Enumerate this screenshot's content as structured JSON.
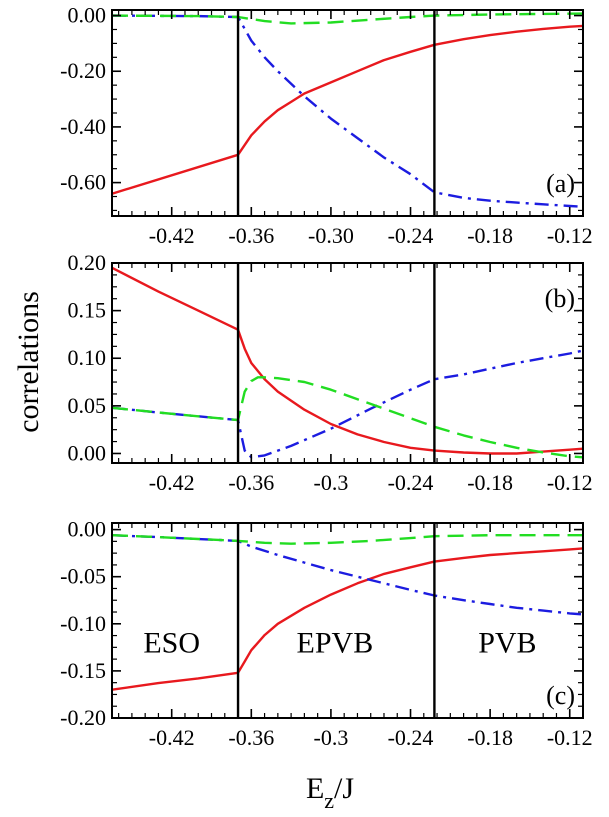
{
  "ylabel": "correlations",
  "xlabel_main": "E",
  "xlabel_sub": "z",
  "xlabel_tail": "/J",
  "chart_data": [
    {
      "type": "line",
      "panel": "(a)",
      "xlim": [
        -0.465,
        -0.11
      ],
      "ylim": [
        -0.72,
        0.02
      ],
      "yticks": [
        0.0,
        -0.2,
        -0.4,
        -0.6
      ],
      "ytick_labels": [
        "0.00",
        "-0.20",
        "-0.40",
        "-0.60"
      ],
      "xticks": [
        -0.42,
        -0.36,
        -0.3,
        -0.24,
        -0.18,
        -0.12
      ],
      "xtick_labels": [
        "-0.42",
        "-0.36",
        "-0.30",
        "-0.24",
        "-0.18",
        "-0.12"
      ],
      "vlines": [
        -0.37,
        -0.222
      ],
      "region_labels": [],
      "series": [
        {
          "color": "#e8191e",
          "dash": "solid",
          "x": [
            -0.465,
            -0.37,
            -0.37,
            -0.36,
            -0.35,
            -0.34,
            -0.33,
            -0.32,
            -0.3,
            -0.28,
            -0.26,
            -0.24,
            -0.222,
            -0.2,
            -0.18,
            -0.16,
            -0.14,
            -0.12,
            -0.11
          ],
          "y": [
            -0.64,
            -0.5,
            -0.5,
            -0.43,
            -0.38,
            -0.34,
            -0.31,
            -0.28,
            -0.24,
            -0.2,
            -0.16,
            -0.13,
            -0.105,
            -0.085,
            -0.07,
            -0.058,
            -0.048,
            -0.04,
            -0.037
          ]
        },
        {
          "color": "#1c1ce0",
          "dash": "dashdot",
          "x": [
            -0.465,
            -0.4,
            -0.37,
            -0.36,
            -0.35,
            -0.34,
            -0.32,
            -0.3,
            -0.28,
            -0.26,
            -0.24,
            -0.222,
            -0.2,
            -0.18,
            -0.16,
            -0.14,
            -0.12,
            -0.11
          ],
          "y": [
            0.0,
            -0.002,
            -0.005,
            -0.09,
            -0.15,
            -0.2,
            -0.29,
            -0.37,
            -0.44,
            -0.51,
            -0.57,
            -0.635,
            -0.655,
            -0.665,
            -0.672,
            -0.678,
            -0.684,
            -0.687
          ]
        },
        {
          "color": "#22dd22",
          "dash": "dashed",
          "x": [
            -0.465,
            -0.4,
            -0.37,
            -0.35,
            -0.33,
            -0.3,
            -0.27,
            -0.24,
            -0.222,
            -0.18,
            -0.14,
            -0.11
          ],
          "y": [
            0.0,
            -0.002,
            -0.005,
            -0.02,
            -0.028,
            -0.025,
            -0.015,
            -0.005,
            0.0,
            0.004,
            0.006,
            0.007
          ]
        }
      ]
    },
    {
      "type": "line",
      "panel": "(b)",
      "xlim": [
        -0.465,
        -0.11
      ],
      "ylim": [
        -0.01,
        0.2
      ],
      "yticks": [
        0.0,
        0.05,
        0.1,
        0.15,
        0.2
      ],
      "ytick_labels": [
        "0.00",
        "0.05",
        "0.10",
        "0.15",
        "0.20"
      ],
      "xticks": [
        -0.42,
        -0.36,
        -0.3,
        -0.24,
        -0.18,
        -0.12
      ],
      "xtick_labels": [
        "-0.42",
        "-0.36",
        "-0.3",
        "-0.24",
        "-0.18",
        "-0.12"
      ],
      "vlines": [
        -0.37,
        -0.222
      ],
      "region_labels": [],
      "series": [
        {
          "color": "#e8191e",
          "dash": "solid",
          "x": [
            -0.465,
            -0.43,
            -0.4,
            -0.37,
            -0.37,
            -0.365,
            -0.36,
            -0.35,
            -0.34,
            -0.32,
            -0.3,
            -0.28,
            -0.26,
            -0.24,
            -0.222,
            -0.2,
            -0.18,
            -0.16,
            -0.14,
            -0.12,
            -0.11
          ],
          "y": [
            0.195,
            0.17,
            0.15,
            0.13,
            0.13,
            0.11,
            0.095,
            0.078,
            0.065,
            0.046,
            0.031,
            0.02,
            0.012,
            0.006,
            0.003,
            0.001,
            0.0,
            0.0,
            0.002,
            0.004,
            0.005
          ]
        },
        {
          "color": "#1c1ce0",
          "dash": "dashdot",
          "x": [
            -0.465,
            -0.43,
            -0.4,
            -0.37,
            -0.37,
            -0.365,
            -0.36,
            -0.35,
            -0.33,
            -0.3,
            -0.27,
            -0.24,
            -0.222,
            -0.2,
            -0.18,
            -0.16,
            -0.14,
            -0.12,
            -0.11
          ],
          "y": [
            0.048,
            0.043,
            0.039,
            0.035,
            0.035,
            0.003,
            -0.004,
            -0.002,
            0.008,
            0.026,
            0.047,
            0.067,
            0.078,
            0.083,
            0.089,
            0.095,
            0.1,
            0.105,
            0.108
          ]
        },
        {
          "color": "#22dd22",
          "dash": "dashed",
          "x": [
            -0.465,
            -0.43,
            -0.4,
            -0.37,
            -0.37,
            -0.365,
            -0.36,
            -0.355,
            -0.35,
            -0.34,
            -0.32,
            -0.3,
            -0.28,
            -0.26,
            -0.24,
            -0.222,
            -0.2,
            -0.18,
            -0.16,
            -0.14,
            -0.12,
            -0.11
          ],
          "y": [
            0.048,
            0.043,
            0.039,
            0.035,
            0.035,
            0.065,
            0.076,
            0.08,
            0.08,
            0.079,
            0.075,
            0.067,
            0.057,
            0.047,
            0.037,
            0.028,
            0.019,
            0.012,
            0.006,
            0.001,
            -0.003,
            -0.004
          ]
        }
      ]
    },
    {
      "type": "line",
      "panel": "(c)",
      "xlim": [
        -0.465,
        -0.11
      ],
      "ylim": [
        -0.2,
        0.007
      ],
      "yticks": [
        0.0,
        -0.05,
        -0.1,
        -0.15,
        -0.2
      ],
      "ytick_labels": [
        "0.00",
        "-0.05",
        "-0.10",
        "-0.15",
        "-0.20"
      ],
      "xticks": [
        -0.42,
        -0.36,
        -0.3,
        -0.24,
        -0.18,
        -0.12
      ],
      "xtick_labels": [
        "-0.42",
        "-0.36",
        "-0.3",
        "-0.24",
        "-0.18",
        "-0.12"
      ],
      "vlines": [
        -0.37,
        -0.222
      ],
      "region_labels": [
        {
          "text": "ESO",
          "x": -0.42,
          "y": -0.12
        },
        {
          "text": "EPVB",
          "x": -0.297,
          "y": -0.12
        },
        {
          "text": "PVB",
          "x": -0.167,
          "y": -0.12
        }
      ],
      "series": [
        {
          "color": "#e8191e",
          "dash": "solid",
          "x": [
            -0.465,
            -0.43,
            -0.4,
            -0.37,
            -0.37,
            -0.365,
            -0.36,
            -0.35,
            -0.34,
            -0.32,
            -0.3,
            -0.28,
            -0.26,
            -0.24,
            -0.222,
            -0.2,
            -0.18,
            -0.16,
            -0.14,
            -0.12,
            -0.11
          ],
          "y": [
            -0.17,
            -0.163,
            -0.158,
            -0.152,
            -0.152,
            -0.14,
            -0.128,
            -0.112,
            -0.1,
            -0.083,
            -0.069,
            -0.057,
            -0.047,
            -0.04,
            -0.034,
            -0.03,
            -0.027,
            -0.025,
            -0.023,
            -0.021,
            -0.02
          ]
        },
        {
          "color": "#1c1ce0",
          "dash": "dashdot",
          "x": [
            -0.465,
            -0.43,
            -0.4,
            -0.37,
            -0.36,
            -0.34,
            -0.32,
            -0.3,
            -0.28,
            -0.26,
            -0.24,
            -0.222,
            -0.2,
            -0.18,
            -0.16,
            -0.14,
            -0.12,
            -0.11
          ],
          "y": [
            -0.006,
            -0.008,
            -0.01,
            -0.012,
            -0.018,
            -0.027,
            -0.035,
            -0.043,
            -0.05,
            -0.057,
            -0.064,
            -0.07,
            -0.075,
            -0.079,
            -0.083,
            -0.086,
            -0.089,
            -0.09
          ]
        },
        {
          "color": "#22dd22",
          "dash": "dashed",
          "x": [
            -0.465,
            -0.43,
            -0.4,
            -0.37,
            -0.35,
            -0.33,
            -0.3,
            -0.27,
            -0.24,
            -0.222,
            -0.18,
            -0.14,
            -0.11
          ],
          "y": [
            -0.006,
            -0.008,
            -0.01,
            -0.012,
            -0.014,
            -0.015,
            -0.014,
            -0.012,
            -0.009,
            -0.007,
            -0.006,
            -0.006,
            -0.006
          ]
        }
      ]
    }
  ]
}
